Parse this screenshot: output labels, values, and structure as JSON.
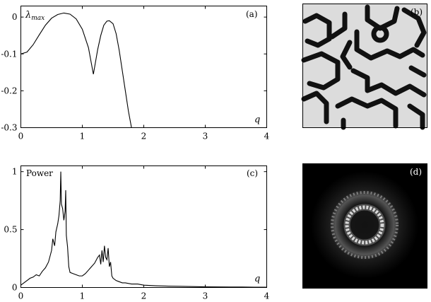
{
  "chart_data": [
    {
      "type": "line",
      "panel": "(a)",
      "ylabel_main": "λ",
      "ylabel_sub": "max",
      "xlabel": "q",
      "xlim": [
        0,
        4
      ],
      "ylim": [
        -0.3,
        0.03
      ],
      "x_ticks": [
        "0",
        "1",
        "2",
        "3",
        "4"
      ],
      "y_ticks": [
        "0",
        "-0.1",
        "-0.2",
        "-0.3"
      ],
      "grid": false,
      "series": [
        {
          "x": [
            0,
            0.1,
            0.2,
            0.3,
            0.4,
            0.5,
            0.6,
            0.7,
            0.8,
            0.9,
            1.0,
            1.1,
            1.18,
            1.25,
            1.3,
            1.35,
            1.4,
            1.44,
            1.5,
            1.55,
            1.6,
            1.65,
            1.7,
            1.75,
            1.8
          ],
          "y": [
            -0.1,
            -0.095,
            -0.075,
            -0.048,
            -0.022,
            -0.003,
            0.007,
            0.011,
            0.008,
            -0.005,
            -0.033,
            -0.083,
            -0.155,
            -0.088,
            -0.05,
            -0.022,
            -0.011,
            -0.01,
            -0.018,
            -0.045,
            -0.09,
            -0.145,
            -0.2,
            -0.255,
            -0.302
          ]
        }
      ]
    },
    {
      "type": "image",
      "panel": "(b)"
    },
    {
      "type": "line",
      "panel": "(c)",
      "ylabel": "Power",
      "xlabel": "q",
      "xlim": [
        0,
        4
      ],
      "ylim": [
        0,
        1.05
      ],
      "x_ticks": [
        "0",
        "1",
        "2",
        "3",
        "4"
      ],
      "y_ticks": [
        "0",
        "0.5",
        "1"
      ],
      "grid": false,
      "series": [
        {
          "x": [
            0,
            0.05,
            0.1,
            0.15,
            0.2,
            0.25,
            0.3,
            0.35,
            0.4,
            0.45,
            0.5,
            0.52,
            0.55,
            0.57,
            0.6,
            0.62,
            0.64,
            0.65,
            0.66,
            0.68,
            0.7,
            0.72,
            0.73,
            0.74,
            0.76,
            0.78,
            0.8,
            0.85,
            0.9,
            0.95,
            1.0,
            1.05,
            1.1,
            1.15,
            1.2,
            1.25,
            1.28,
            1.3,
            1.32,
            1.34,
            1.36,
            1.38,
            1.4,
            1.42,
            1.44,
            1.46,
            1.48,
            1.5,
            1.55,
            1.6,
            1.65,
            1.7,
            1.8,
            1.9,
            2.0,
            2.2,
            2.4,
            2.6,
            2.8,
            3.0,
            3.2,
            3.4,
            3.6,
            3.8,
            4.0
          ],
          "y": [
            0.02,
            0.04,
            0.06,
            0.08,
            0.09,
            0.11,
            0.1,
            0.14,
            0.17,
            0.22,
            0.32,
            0.42,
            0.36,
            0.48,
            0.55,
            0.62,
            0.75,
            1.0,
            0.72,
            0.68,
            0.58,
            0.66,
            0.84,
            0.45,
            0.35,
            0.18,
            0.13,
            0.12,
            0.11,
            0.1,
            0.1,
            0.12,
            0.15,
            0.18,
            0.21,
            0.26,
            0.28,
            0.2,
            0.32,
            0.22,
            0.36,
            0.26,
            0.24,
            0.34,
            0.18,
            0.22,
            0.1,
            0.08,
            0.06,
            0.05,
            0.04,
            0.04,
            0.03,
            0.03,
            0.02,
            0.015,
            0.012,
            0.01,
            0.008,
            0.006,
            0.005,
            0.004,
            0.004,
            0.003,
            0.003
          ]
        }
      ]
    },
    {
      "type": "image",
      "panel": "(d)"
    }
  ]
}
